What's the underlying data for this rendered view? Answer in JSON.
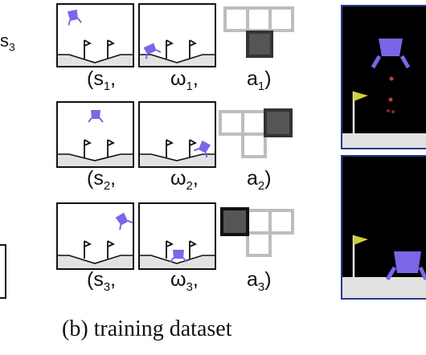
{
  "left_panel": {
    "state_label": "s",
    "state_sub": "3"
  },
  "rows": [
    {
      "id": 1,
      "s": "s",
      "s_sub": "1",
      "omega": "ω",
      "omega_sub": "1",
      "a": "a",
      "a_sub": "1",
      "selected_action_cell": "bottom"
    },
    {
      "id": 2,
      "s": "s",
      "s_sub": "2",
      "omega": "ω",
      "omega_sub": "2",
      "a": "a",
      "a_sub": "2",
      "selected_action_cell": "right"
    },
    {
      "id": 3,
      "s": "s",
      "s_sub": "3",
      "omega": "ω",
      "omega_sub": "3",
      "a": "a",
      "a_sub": "3",
      "selected_action_cell": "left"
    }
  ],
  "punct": {
    "open": "(",
    "comma": ",",
    "close": ")"
  },
  "caption": "(b) training dataset",
  "colors": {
    "lander": "#7b66e8",
    "ground": "#e2e2e2",
    "action_grid": "#bdbdbd",
    "action_selected": "#555555",
    "scene_bg": "#000000",
    "scene_border": "#1e3d8a",
    "flag": "#cfcf3a"
  }
}
